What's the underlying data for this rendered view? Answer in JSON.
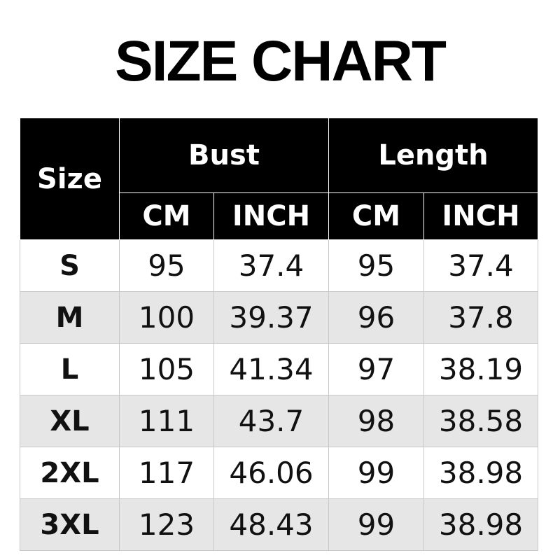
{
  "title": "SIZE CHART",
  "colors": {
    "header_bg": "#000000",
    "header_text": "#ffffff",
    "alt_row_bg": "#e6e6e6",
    "row_bg": "#ffffff"
  },
  "chart_data": {
    "type": "table",
    "title": "SIZE CHART",
    "header": {
      "size": "Size",
      "groups": [
        "Bust",
        "Length"
      ],
      "units": [
        "CM",
        "INCH",
        "CM",
        "INCH"
      ]
    },
    "rows": [
      {
        "size": "S",
        "values": [
          "95",
          "37.4",
          "95",
          "37.4"
        ]
      },
      {
        "size": "M",
        "values": [
          "100",
          "39.37",
          "96",
          "37.8"
        ]
      },
      {
        "size": "L",
        "values": [
          "105",
          "41.34",
          "97",
          "38.19"
        ]
      },
      {
        "size": "XL",
        "values": [
          "111",
          "43.7",
          "98",
          "38.58"
        ]
      },
      {
        "size": "2XL",
        "values": [
          "117",
          "46.06",
          "99",
          "38.98"
        ]
      },
      {
        "size": "3XL",
        "values": [
          "123",
          "48.43",
          "99",
          "38.98"
        ]
      }
    ]
  }
}
